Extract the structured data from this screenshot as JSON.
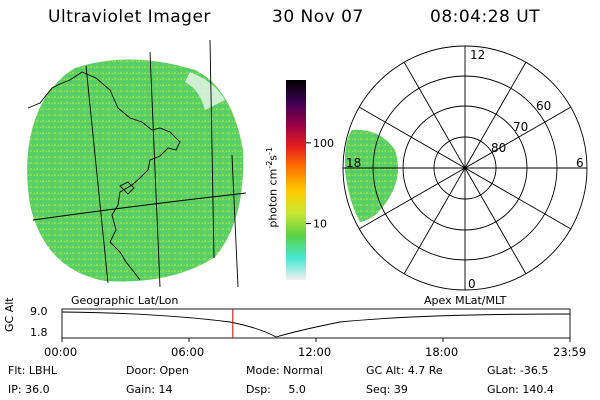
{
  "header": {
    "instrument": "Ultraviolet Imager",
    "date": "30 Nov 07",
    "time": "08:04:28 UT"
  },
  "colorbar": {
    "unit_label": "photon cm",
    "unit_exp1": "-2",
    "unit_mid": "s",
    "unit_exp2": "-1",
    "ticks": [
      {
        "label": "100",
        "value": 100
      },
      {
        "label": "10",
        "value": 10
      }
    ],
    "stops": [
      "#f0f0f0",
      "#46e6d2",
      "#5ad246",
      "#c8e632",
      "#ffcc00",
      "#ff7a00",
      "#e61e1e",
      "#960046",
      "#3c0050",
      "#000000"
    ]
  },
  "geo_panel": {
    "label": "Geographic Lat/Lon",
    "fill_color": "#5fd05a"
  },
  "polar_panel": {
    "label": "Apex MLat/MLT",
    "mlt_labels": {
      "top": "12",
      "left": "18",
      "right": "6",
      "bottom": "0"
    },
    "lat_labels": [
      "60",
      "70",
      "80"
    ]
  },
  "timeline": {
    "axis_label": "GC Alt",
    "y_top": "9.0",
    "y_bottom": "1.8",
    "x_ticks": [
      "00:00",
      "06:00",
      "12:00",
      "18:00",
      "23:59"
    ],
    "marker_time_hours": 8.07,
    "marker_color": "#cc0000"
  },
  "footer": {
    "flt": "Flt: LBHL",
    "ip": "IP: 36.0",
    "door": "Door: Open",
    "gain": "Gain: 14",
    "mode": "Mode: Normal",
    "dsp": "Dsp:     5.0",
    "gcalt": "GC Alt: 4.7 Re",
    "seq": "Seq: 39",
    "glat": "GLat: -36.5",
    "glon": "GLon: 140.4"
  }
}
